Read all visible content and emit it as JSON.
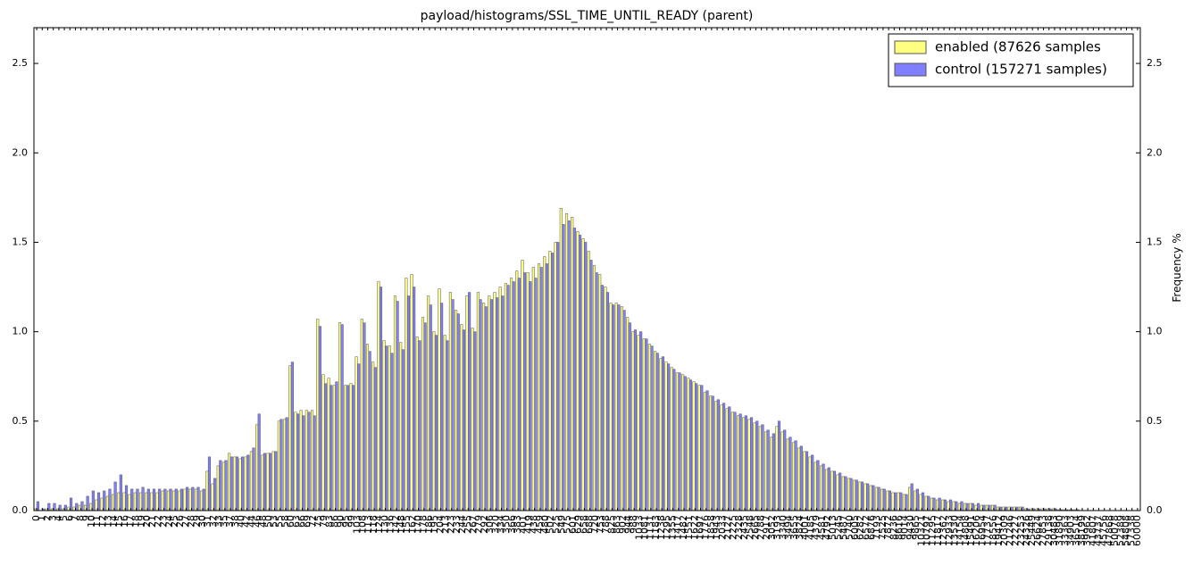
{
  "chart_data": {
    "type": "bar",
    "title": "payload/histograms/SSL_TIME_UNTIL_READY (parent)",
    "y2_label": "Frequency %",
    "legend_position": "upper right",
    "categories": [
      0,
      1,
      2,
      3,
      4,
      5,
      6,
      7,
      8,
      9,
      10,
      11,
      12,
      13,
      14,
      15,
      16,
      17,
      18,
      19,
      20,
      21,
      22,
      23,
      24,
      25,
      26,
      27,
      28,
      29,
      30,
      31,
      32,
      33,
      35,
      37,
      38,
      40,
      42,
      44,
      46,
      48,
      50,
      53,
      55,
      58,
      60,
      63,
      66,
      69,
      72,
      75,
      79,
      83,
      86,
      90,
      95,
      99,
      103,
      108,
      113,
      118,
      124,
      130,
      136,
      142,
      148,
      155,
      162,
      170,
      178,
      186,
      195,
      204,
      213,
      223,
      233,
      244,
      255,
      267,
      279,
      292,
      306,
      320,
      334,
      350,
      366,
      383,
      401,
      419,
      438,
      459,
      480,
      502,
      525,
      549,
      575,
      601,
      629,
      658,
      688,
      720,
      753,
      788,
      825,
      863,
      902,
      944,
      988,
      1033,
      1081,
      1131,
      1183,
      1238,
      1295,
      1355,
      1417,
      1482,
      1551,
      1622,
      1697,
      1776,
      1858,
      1943,
      2033,
      2127,
      2225,
      2328,
      2435,
      2548,
      2665,
      2788,
      2917,
      3052,
      3193,
      3340,
      3494,
      3655,
      3824,
      4001,
      4185,
      4379,
      4581,
      4792,
      5013,
      5245,
      5487,
      5740,
      6005,
      6282,
      6572,
      6876,
      7193,
      7525,
      7872,
      8236,
      8616,
      9014,
      9430,
      9865,
      10321,
      10797,
      11295,
      11817,
      12362,
      12933,
      13530,
      14154,
      14808,
      15491,
      16206,
      16954,
      17737,
      18556,
      19412,
      20309,
      21246,
      22227,
      23253,
      24326,
      25449,
      26624,
      27853,
      29138,
      30483,
      31890,
      33363,
      34903,
      36514,
      38199,
      39962,
      41807,
      43737,
      45756,
      47868,
      50078,
      52389,
      54808,
      57338,
      60000
    ],
    "series": [
      {
        "name": "enabled (87626 samples",
        "color": "#ffff80",
        "values": [
          0.01,
          0,
          0.01,
          0.01,
          0.01,
          0.01,
          0.02,
          0.02,
          0.03,
          0.03,
          0.04,
          0.06,
          0.07,
          0.08,
          0.09,
          0.1,
          0.1,
          0.09,
          0.1,
          0.1,
          0.1,
          0.1,
          0.1,
          0.11,
          0.11,
          0.11,
          0.11,
          0.12,
          0.12,
          0.12,
          0.11,
          0.22,
          0.15,
          0.25,
          0.27,
          0.32,
          0.3,
          0.29,
          0.3,
          0.33,
          0.48,
          0.31,
          0.32,
          0.33,
          0.5,
          0.51,
          0.81,
          0.55,
          0.56,
          0.56,
          0.56,
          1.07,
          0.76,
          0.74,
          0.7,
          1.05,
          0.7,
          0.71,
          0.86,
          1.07,
          0.93,
          0.83,
          1.28,
          0.95,
          0.92,
          1.2,
          0.94,
          1.3,
          1.32,
          0.97,
          1.08,
          1.2,
          1.0,
          1.24,
          0.98,
          1.22,
          1.12,
          1.04,
          1.2,
          1.02,
          1.22,
          1.16,
          1.2,
          1.22,
          1.25,
          1.27,
          1.3,
          1.34,
          1.4,
          1.33,
          1.36,
          1.38,
          1.42,
          1.45,
          1.5,
          1.69,
          1.66,
          1.64,
          1.56,
          1.52,
          1.45,
          1.37,
          1.32,
          1.25,
          1.16,
          1.16,
          1.14,
          1.08,
          1.0,
          0.98,
          0.96,
          0.93,
          0.89,
          0.85,
          0.83,
          0.8,
          0.77,
          0.76,
          0.74,
          0.72,
          0.7,
          0.66,
          0.64,
          0.61,
          0.59,
          0.57,
          0.55,
          0.53,
          0.52,
          0.51,
          0.49,
          0.47,
          0.44,
          0.41,
          0.47,
          0.44,
          0.4,
          0.38,
          0.35,
          0.33,
          0.3,
          0.27,
          0.25,
          0.23,
          0.22,
          0.2,
          0.19,
          0.18,
          0.17,
          0.16,
          0.15,
          0.14,
          0.13,
          0.12,
          0.11,
          0.1,
          0.1,
          0.09,
          0.13,
          0.11,
          0.09,
          0.08,
          0.07,
          0.06,
          0.06,
          0.05,
          0.05,
          0.04,
          0.04,
          0.04,
          0.03,
          0.03,
          0.03,
          0.03,
          0.02,
          0.02,
          0.02,
          0.02,
          0.02,
          0.01,
          0.01,
          0.01,
          0.01,
          0.01,
          0.01,
          0.005,
          0.005,
          0.005,
          0.005,
          0,
          0,
          0,
          0,
          0,
          0,
          0,
          0,
          0,
          0,
          0
        ]
      },
      {
        "name": "control (157271 samples)",
        "color": "#8080ff",
        "values": [
          0.05,
          0.01,
          0.04,
          0.04,
          0.03,
          0.03,
          0.07,
          0.04,
          0.05,
          0.08,
          0.11,
          0.1,
          0.11,
          0.12,
          0.16,
          0.2,
          0.14,
          0.12,
          0.12,
          0.13,
          0.12,
          0.12,
          0.12,
          0.12,
          0.12,
          0.12,
          0.12,
          0.13,
          0.13,
          0.13,
          0.12,
          0.3,
          0.18,
          0.28,
          0.28,
          0.3,
          0.3,
          0.3,
          0.31,
          0.35,
          0.54,
          0.32,
          0.32,
          0.33,
          0.51,
          0.52,
          0.83,
          0.54,
          0.53,
          0.55,
          0.53,
          1.03,
          0.71,
          0.7,
          0.72,
          1.04,
          0.7,
          0.7,
          0.82,
          1.05,
          0.89,
          0.8,
          1.25,
          0.92,
          0.88,
          1.17,
          0.9,
          1.2,
          1.25,
          0.95,
          1.05,
          1.15,
          0.98,
          1.16,
          0.95,
          1.18,
          1.1,
          1.01,
          1.22,
          1.0,
          1.18,
          1.14,
          1.18,
          1.19,
          1.2,
          1.26,
          1.28,
          1.3,
          1.33,
          1.28,
          1.3,
          1.36,
          1.38,
          1.44,
          1.5,
          1.6,
          1.62,
          1.58,
          1.54,
          1.5,
          1.4,
          1.33,
          1.26,
          1.22,
          1.15,
          1.15,
          1.12,
          1.05,
          1.01,
          1.0,
          0.96,
          0.92,
          0.88,
          0.86,
          0.82,
          0.79,
          0.77,
          0.75,
          0.73,
          0.71,
          0.7,
          0.67,
          0.64,
          0.62,
          0.6,
          0.58,
          0.55,
          0.54,
          0.53,
          0.52,
          0.5,
          0.48,
          0.45,
          0.43,
          0.5,
          0.45,
          0.41,
          0.39,
          0.36,
          0.33,
          0.31,
          0.28,
          0.26,
          0.24,
          0.22,
          0.21,
          0.19,
          0.18,
          0.17,
          0.16,
          0.15,
          0.14,
          0.13,
          0.12,
          0.11,
          0.1,
          0.1,
          0.09,
          0.15,
          0.12,
          0.1,
          0.08,
          0.07,
          0.07,
          0.06,
          0.06,
          0.05,
          0.05,
          0.04,
          0.04,
          0.04,
          0.03,
          0.03,
          0.03,
          0.02,
          0.02,
          0.02,
          0.02,
          0.02,
          0.01,
          0.01,
          0.01,
          0.01,
          0.01,
          0.01,
          0.005,
          0.005,
          0.005,
          0.005,
          0,
          0,
          0,
          0,
          0,
          0,
          0,
          0,
          0,
          0,
          0
        ]
      }
    ],
    "ylim": [
      0,
      2.7
    ],
    "yticks": [
      {
        "value": 0,
        "label": "0.0"
      },
      0.5,
      {
        "value": 1,
        "label": "1.0"
      },
      1.5,
      {
        "value": 2,
        "label": "2.0"
      },
      2.5
    ]
  }
}
